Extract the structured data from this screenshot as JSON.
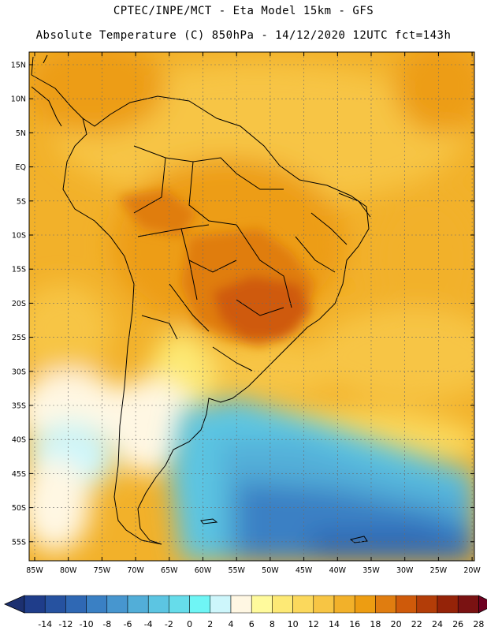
{
  "header": {
    "line1": "CPTEC/INPE/MCT -  Eta Model 15km - GFS",
    "line2": "Absolute Temperature (C) 850hPa - 14/12/2020 12UTC fct=143h"
  },
  "map": {
    "lat_labels": [
      "15N",
      "10N",
      "5N",
      "EQ",
      "5S",
      "10S",
      "15S",
      "20S",
      "25S",
      "30S",
      "35S",
      "40S",
      "45S",
      "50S",
      "55S"
    ],
    "lon_labels": [
      "85W",
      "80W",
      "75W",
      "70W",
      "65W",
      "60W",
      "55W",
      "50W",
      "45W",
      "40W",
      "35W",
      "30W",
      "25W",
      "20W"
    ]
  },
  "colorbar": {
    "ticks": [
      "-14",
      "-12",
      "-10",
      "-8",
      "-6",
      "-4",
      "-2",
      "0",
      "2",
      "4",
      "6",
      "8",
      "10",
      "12",
      "14",
      "16",
      "18",
      "20",
      "22",
      "24",
      "26",
      "28"
    ],
    "colors": [
      "#1f3d8a",
      "#2652a0",
      "#2f68b4",
      "#3a80c4",
      "#4796cf",
      "#52aed8",
      "#5cc5e2",
      "#66dcea",
      "#6ff5f5",
      "#cdf6fb",
      "#fff7e3",
      "#fffa9c",
      "#fde975",
      "#fbd85c",
      "#f7c544",
      "#f2b12a",
      "#ed9d12",
      "#e07d10",
      "#cf5a0a",
      "#b33d08",
      "#952308",
      "#7a1212"
    ],
    "low_color": "#1c3070",
    "high_color": "#6e0020"
  }
}
